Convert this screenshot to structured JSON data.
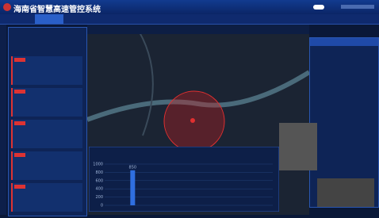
{
  "header": {
    "title": "海南省智慧高速管控系统"
  },
  "chart_data": {
    "type": "bar",
    "categories": [
      null,
      null,
      null
    ],
    "values": [
      850,
      0,
      0
    ],
    "color": "#2f6fe0",
    "ylim": [
      0,
      1000
    ],
    "yticks": [
      0,
      200,
      400,
      600,
      800,
      1000
    ],
    "grid": true
  }
}
